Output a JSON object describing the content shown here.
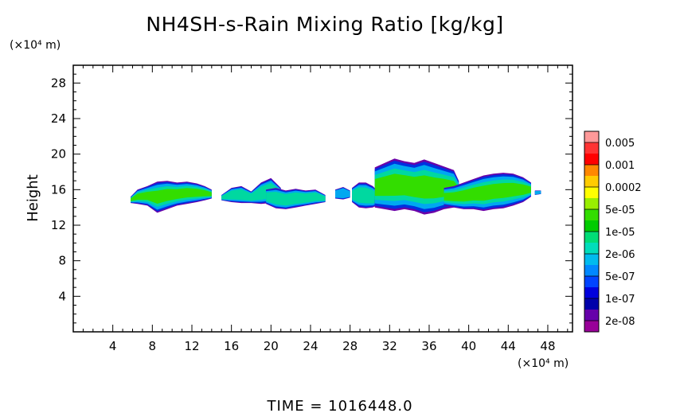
{
  "chart_data": {
    "type": "heatmap",
    "title": "NH4SH-s-Rain Mixing Ratio [kg/kg]",
    "xlabel": "(×10⁴ m)",
    "ylabel": "Height",
    "yunit": "(×10⁴ m)",
    "xlim": [
      0,
      50.5
    ],
    "ylim": [
      0,
      30
    ],
    "xticks": [
      4,
      8,
      12,
      16,
      20,
      24,
      28,
      32,
      36,
      40,
      44,
      48
    ],
    "yticks": [
      4,
      8,
      12,
      16,
      20,
      24,
      28
    ],
    "footer": "TIME = 1016448.0",
    "colorbar": {
      "labels": [
        "0.005",
        "0.001",
        "0.0002",
        "5e-05",
        "1e-05",
        "2e-06",
        "5e-07",
        "1e-07",
        "2e-08"
      ],
      "colors": [
        "#ff9999",
        "#ff3333",
        "#ff0000",
        "#ff8800",
        "#ffcc00",
        "#ffff00",
        "#99ee00",
        "#33dd00",
        "#00cc00",
        "#00dd77",
        "#00ddbb",
        "#00bbee",
        "#0088ff",
        "#0044ff",
        "#0000dd",
        "#0000aa",
        "#6600aa",
        "#990099"
      ]
    },
    "clouds": [
      {
        "x": [
          5.8,
          6.5,
          7.5,
          8.5,
          9.5,
          10.5,
          11.5,
          12.5,
          13.3,
          14.0
        ],
        "ytop": [
          15.2,
          16.0,
          16.4,
          16.9,
          17.0,
          16.8,
          16.9,
          16.7,
          16.4,
          16.0
        ],
        "ybot": [
          14.5,
          14.4,
          14.2,
          13.4,
          13.8,
          14.2,
          14.4,
          14.6,
          14.8,
          15.0
        ],
        "core": 0.55
      },
      {
        "x": [
          15.0,
          16.0,
          17.0,
          18.0,
          19.0,
          20.0,
          21.0
        ],
        "ytop": [
          15.4,
          16.2,
          16.4,
          15.8,
          16.8,
          17.3,
          16.2
        ],
        "ybot": [
          14.8,
          14.6,
          14.5,
          14.5,
          14.4,
          14.5,
          14.8
        ],
        "core": 0.35
      },
      {
        "x": [
          19.5,
          20.5,
          21.5,
          22.5,
          23.5,
          24.5,
          25.5
        ],
        "ytop": [
          16.0,
          16.2,
          15.9,
          16.1,
          15.9,
          16.0,
          15.4
        ],
        "ybot": [
          14.4,
          13.9,
          13.8,
          14.0,
          14.2,
          14.4,
          14.6
        ],
        "core": 0.4
      },
      {
        "x": [
          26.5,
          27.3,
          28.0
        ],
        "ytop": [
          16.0,
          16.3,
          15.9
        ],
        "ybot": [
          15.0,
          14.9,
          15.1
        ],
        "core": 0.0
      },
      {
        "x": [
          28.2,
          28.9,
          29.6,
          30.3,
          31.0
        ],
        "ytop": [
          16.2,
          16.8,
          16.8,
          16.4,
          15.6
        ],
        "ybot": [
          14.6,
          14.0,
          13.9,
          14.0,
          14.4
        ],
        "core": 0.5
      },
      {
        "x": [
          30.5,
          31.5,
          32.5,
          33.5,
          34.5,
          35.5,
          36.5,
          37.5,
          38.5,
          39.0
        ],
        "ytop": [
          18.5,
          19.0,
          19.5,
          19.2,
          19.0,
          19.4,
          19.0,
          18.6,
          18.2,
          17.0
        ],
        "ybot": [
          14.0,
          13.8,
          13.6,
          13.8,
          13.6,
          13.2,
          13.4,
          13.8,
          14.0,
          14.4
        ],
        "core": 0.6
      },
      {
        "x": [
          37.5,
          38.5,
          39.5,
          40.5,
          41.5,
          42.5,
          43.5,
          44.5,
          45.5,
          46.3
        ],
        "ytop": [
          16.2,
          16.4,
          16.8,
          17.2,
          17.6,
          17.8,
          17.9,
          17.8,
          17.4,
          16.8
        ],
        "ybot": [
          14.2,
          14.0,
          13.8,
          13.8,
          13.6,
          13.8,
          13.9,
          14.2,
          14.6,
          15.2
        ],
        "core": 0.6
      },
      {
        "x": [
          46.7,
          47.3
        ],
        "ytop": [
          15.9,
          15.9
        ],
        "ybot": [
          15.4,
          15.5
        ],
        "core": 0.0
      }
    ]
  }
}
